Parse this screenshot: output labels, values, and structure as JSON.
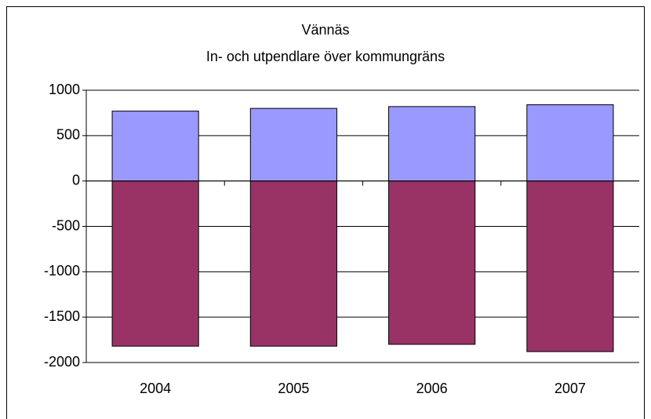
{
  "chart_data": {
    "type": "bar",
    "stacked": true,
    "title": "Vännäs",
    "subtitle": "In- och utpendlare över kommungräns",
    "categories": [
      "2004",
      "2005",
      "2006",
      "2007"
    ],
    "series": [
      {
        "color": "#9999ff",
        "values": [
          770,
          800,
          820,
          840
        ]
      },
      {
        "color": "#993366",
        "values": [
          -1820,
          -1820,
          -1800,
          -1880
        ]
      }
    ],
    "ylim": [
      -2000,
      1000
    ],
    "yticks": [
      -2000,
      -1500,
      -1000,
      -500,
      0,
      500,
      1000
    ],
    "grid": true
  }
}
